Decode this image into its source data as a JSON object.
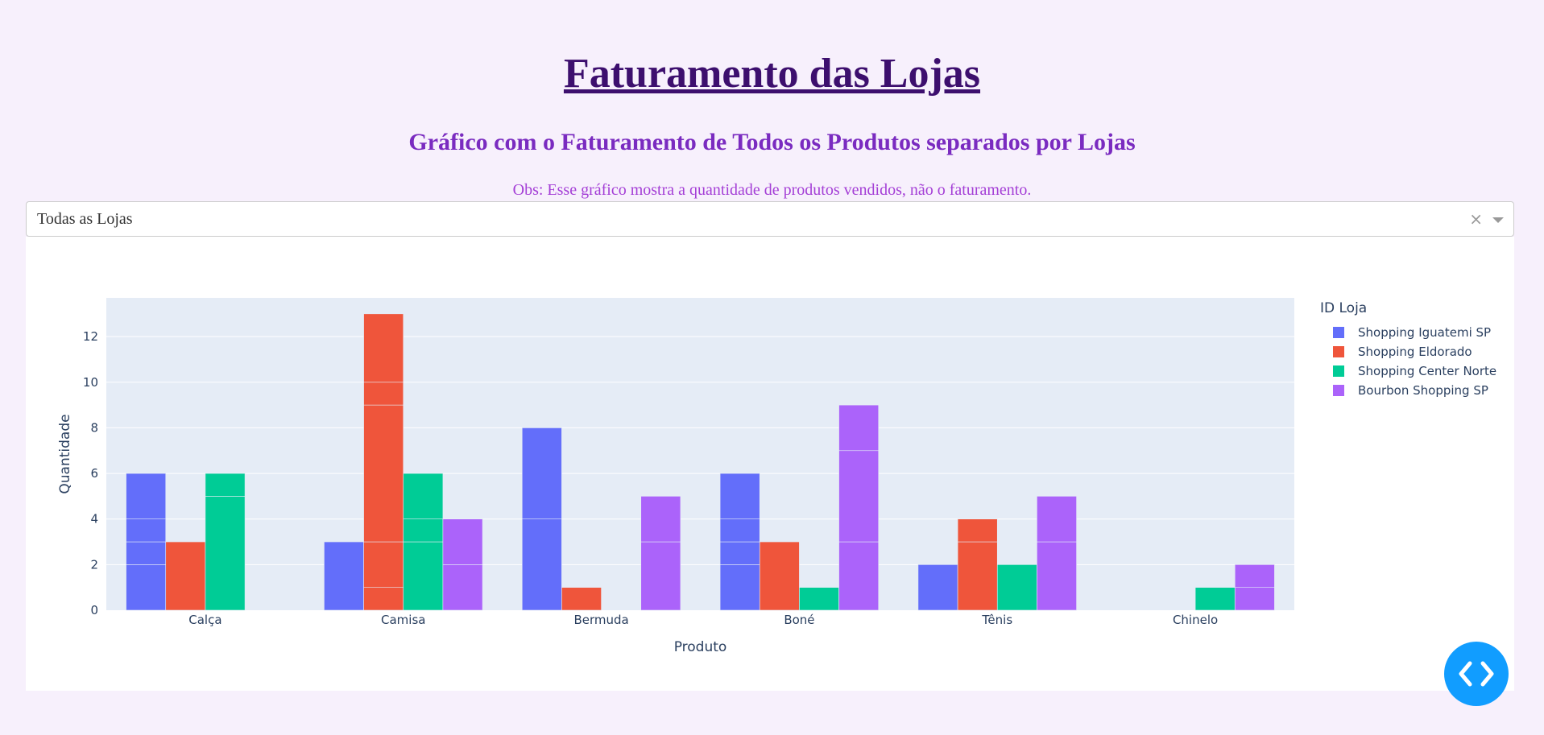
{
  "page": {
    "title": "Faturamento das Lojas",
    "subtitle": "Gráfico com o Faturamento de Todos os Produtos separados por Lojas",
    "note": "Obs: Esse gráfico mostra a quantidade de produtos vendidos, não o faturamento."
  },
  "dropdown": {
    "selected": "Todas as Lojas",
    "clear_icon": "×",
    "arrow_icon": "chevron-down-icon"
  },
  "fab": {
    "icon": "code-icon",
    "color": "#119dff"
  },
  "chart_data": {
    "type": "bar",
    "barmode": "group",
    "categories": [
      "Calça",
      "Camisa",
      "Bermuda",
      "Boné",
      "Tênis",
      "Chinelo"
    ],
    "xlabel": "Produto",
    "ylabel": "Quantidade",
    "ylim": [
      0,
      13.7
    ],
    "yticks": [
      0,
      2,
      4,
      6,
      8,
      10,
      12
    ],
    "grid": true,
    "plot_bgcolor": "#e5ecf6",
    "legend": {
      "title": "ID Loja",
      "placement": "right"
    },
    "series": [
      {
        "name": "Shopping Iguatemi SP",
        "color": "#636efa",
        "values": [
          6,
          3,
          8,
          6,
          2,
          null
        ],
        "segments": [
          [
            2,
            1,
            1,
            2
          ],
          [
            3
          ],
          [
            4,
            4
          ],
          [
            2,
            1,
            1,
            2
          ],
          [
            2
          ],
          []
        ]
      },
      {
        "name": "Shopping Eldorado",
        "color": "#ef553b",
        "values": [
          3,
          13,
          1,
          3,
          4,
          null
        ],
        "segments": [
          [
            3
          ],
          [
            1,
            2,
            6,
            1,
            3
          ],
          [
            1
          ],
          [
            3
          ],
          [
            3,
            1
          ],
          []
        ]
      },
      {
        "name": "Shopping Center Norte",
        "color": "#00cc96",
        "values": [
          6,
          6,
          null,
          1,
          2,
          1
        ],
        "segments": [
          [
            5,
            1
          ],
          [
            3,
            1,
            2
          ],
          [],
          [
            1
          ],
          [
            2
          ],
          [
            1
          ]
        ]
      },
      {
        "name": "Bourbon Shopping SP",
        "color": "#ab63fa",
        "values": [
          null,
          4,
          5,
          9,
          5,
          2
        ],
        "segments": [
          [],
          [
            2,
            2
          ],
          [
            3,
            2
          ],
          [
            3,
            4,
            2
          ],
          [
            3,
            2
          ],
          [
            1,
            1
          ]
        ]
      }
    ]
  }
}
